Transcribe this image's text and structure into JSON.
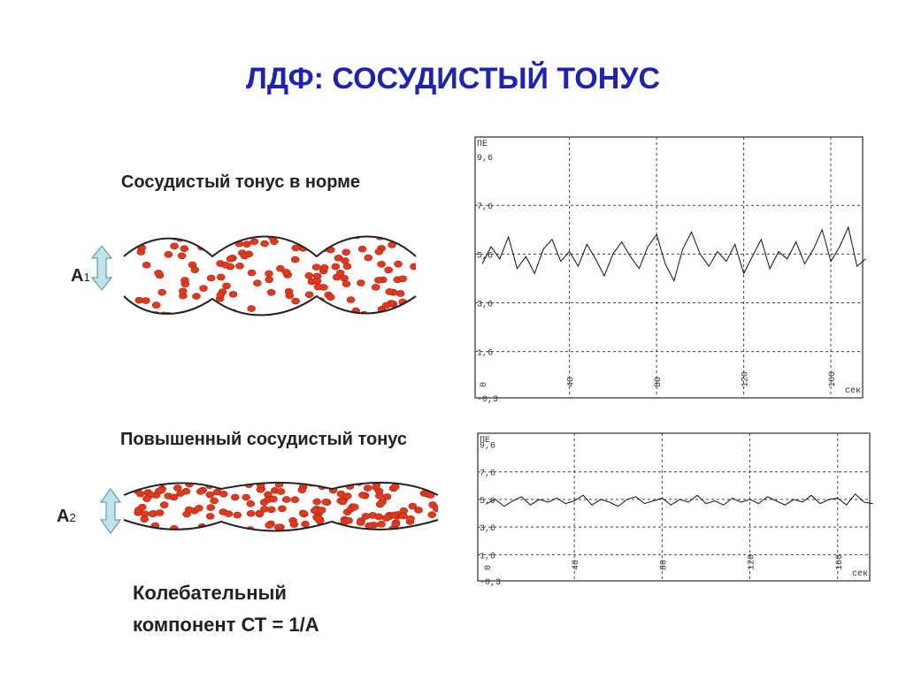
{
  "title": "ЛДФ: СОСУДИСТЫЙ ТОНУС",
  "sections": [
    {
      "heading": "Сосудистый тонус в норме",
      "amplitude_label": "А",
      "amplitude_index": 1
    },
    {
      "heading": "Повышенный сосудистый тонус",
      "amplitude_label": "А",
      "amplitude_index": 2
    }
  ],
  "note_lines": [
    "Колебательный",
    "компонент СТ = 1/А"
  ],
  "plots": [
    {
      "y_unit": "ПЕ",
      "x_unit": "сек",
      "xlim": [
        -3.3,
        174.6
      ],
      "ylim": [
        -0.3,
        10.4
      ],
      "yticks": [
        {
          "value": 9.6,
          "label": "9,6"
        },
        {
          "value": 7.6,
          "label": "7,6"
        },
        {
          "value": 5.6,
          "label": "5,6"
        },
        {
          "value": 3.6,
          "label": "3,6"
        },
        {
          "value": 1.6,
          "label": "1,6"
        },
        {
          "value": -0.3,
          "label": "-0,3"
        }
      ],
      "xticks": [
        0,
        40,
        80,
        120,
        160
      ],
      "x": [
        0,
        4,
        8,
        12,
        16,
        20,
        24,
        28,
        32,
        36,
        40,
        44,
        48,
        52,
        56,
        60,
        64,
        68,
        72,
        76,
        80,
        84,
        88,
        92,
        96,
        100,
        104,
        108,
        112,
        116,
        120,
        124,
        128,
        132,
        136,
        140,
        144,
        148,
        152,
        156,
        160,
        164,
        168,
        172,
        176
      ],
      "values": [
        5.2,
        5.9,
        5.4,
        6.3,
        5.0,
        5.5,
        4.8,
        5.8,
        6.2,
        5.3,
        5.7,
        5.1,
        6.0,
        5.4,
        4.7,
        5.6,
        6.1,
        5.5,
        5.0,
        5.9,
        6.4,
        5.2,
        4.5,
        5.8,
        6.5,
        5.6,
        5.1,
        5.7,
        5.3,
        6.0,
        4.8,
        5.5,
        6.2,
        5.0,
        5.7,
        5.4,
        6.1,
        5.2,
        5.8,
        6.6,
        5.3,
        5.9,
        6.7,
        5.1,
        5.4
      ]
    },
    {
      "y_unit": "ПЕ",
      "x_unit": "сек",
      "xlim": [
        -4,
        174.6
      ],
      "ylim": [
        -0.3,
        10.4
      ],
      "yticks": [
        {
          "value": 9.6,
          "label": "9,6"
        },
        {
          "value": 7.6,
          "label": "7,6"
        },
        {
          "value": 5.6,
          "label": "5,6"
        },
        {
          "value": 3.6,
          "label": "3,6"
        },
        {
          "value": 1.6,
          "label": "1,6"
        },
        {
          "value": -0.3,
          "label": "-0,3"
        }
      ],
      "xticks": [
        0,
        40,
        80,
        120,
        160
      ],
      "x": [
        0,
        4,
        8,
        12,
        16,
        20,
        24,
        28,
        32,
        36,
        40,
        44,
        48,
        52,
        56,
        60,
        64,
        68,
        72,
        76,
        80,
        84,
        88,
        92,
        96,
        100,
        104,
        108,
        112,
        116,
        120,
        124,
        128,
        132,
        136,
        140,
        144,
        148,
        152,
        156,
        160,
        164,
        168,
        172,
        176
      ],
      "values": [
        5.3,
        5.6,
        5.1,
        5.5,
        5.8,
        5.2,
        5.6,
        5.4,
        5.7,
        5.3,
        5.5,
        5.9,
        5.2,
        5.6,
        5.4,
        5.1,
        5.6,
        5.8,
        5.3,
        5.5,
        5.7,
        5.2,
        5.6,
        5.4,
        5.9,
        5.3,
        5.5,
        5.2,
        5.7,
        5.4,
        5.6,
        5.3,
        5.8,
        5.5,
        5.2,
        5.6,
        5.4,
        5.9,
        5.3,
        5.6,
        5.7,
        5.2,
        6.0,
        5.4,
        5.3
      ]
    }
  ]
}
